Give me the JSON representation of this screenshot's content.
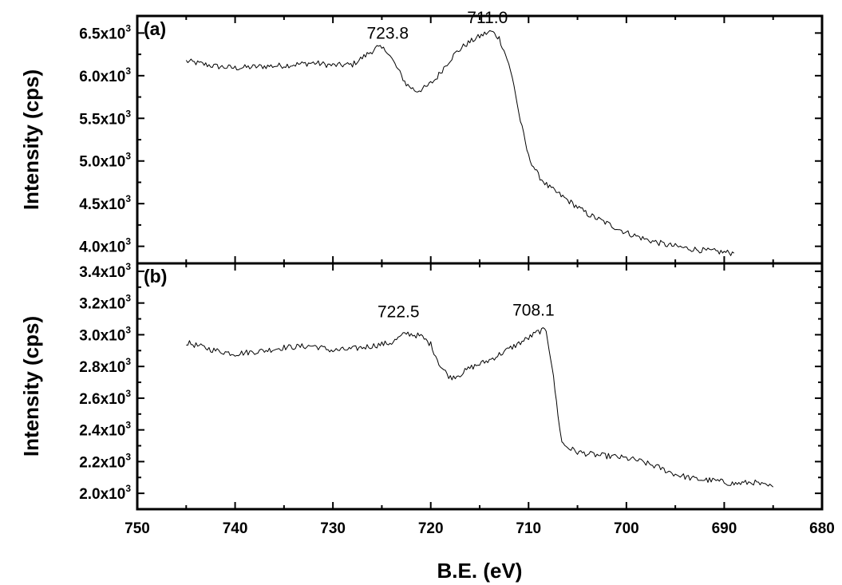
{
  "chart_data": {
    "type": "line",
    "xlabel": "B.E. (eV)",
    "xlim": [
      750,
      680
    ],
    "x_ticks": [
      750,
      740,
      730,
      720,
      710,
      700,
      690,
      680
    ],
    "panels": [
      {
        "tag": "(a)",
        "ylabel": "Intensity (cps)",
        "ylim": [
          3800,
          6700
        ],
        "y_ticks": [
          {
            "value": 4000,
            "mantissa": "4.0x10",
            "exp": "3"
          },
          {
            "value": 4500,
            "mantissa": "4.5x10",
            "exp": "3"
          },
          {
            "value": 5000,
            "mantissa": "5.0x10",
            "exp": "3"
          },
          {
            "value": 5500,
            "mantissa": "5.5x10",
            "exp": "3"
          },
          {
            "value": 6000,
            "mantissa": "6.0x10",
            "exp": "3"
          },
          {
            "value": 6500,
            "mantissa": "6.5x10",
            "exp": "3"
          }
        ],
        "annotations": [
          {
            "text": "723.8",
            "x": 724.4,
            "y": 6360
          },
          {
            "text": "711.0",
            "x": 714.2,
            "y": 6540
          }
        ],
        "series": [
          {
            "x": [
              745,
              742,
              740,
              737,
              735,
              732,
              730,
              728,
              726.5,
              725.5,
              724.5,
              723.5,
              722.5,
              721.5,
              720.5,
              719.5,
              718.5,
              717.5,
              716.5,
              715.5,
              714.5,
              713.8,
              713,
              712.2,
              711.5,
              711,
              710.5,
              710,
              709,
              708,
              707,
              706,
              704,
              702,
              700,
              698,
              696,
              694,
              692,
              690,
              689
            ],
            "y": [
              6170,
              6110,
              6090,
              6110,
              6120,
              6150,
              6120,
              6130,
              6250,
              6330,
              6300,
              6100,
              5900,
              5820,
              5860,
              5960,
              6120,
              6260,
              6360,
              6430,
              6490,
              6520,
              6440,
              6200,
              5900,
              5560,
              5300,
              5050,
              4830,
              4700,
              4620,
              4540,
              4380,
              4270,
              4160,
              4080,
              4020,
              3980,
              3950,
              3930,
              3920
            ]
          }
        ]
      },
      {
        "tag": "(b)",
        "ylabel": "Intensity (cps)",
        "ylim": [
          1900,
          3450
        ],
        "y_ticks": [
          {
            "value": 2000,
            "mantissa": "2.0x10",
            "exp": "3"
          },
          {
            "value": 2200,
            "mantissa": "2.2x10",
            "exp": "3"
          },
          {
            "value": 2400,
            "mantissa": "2.4x10",
            "exp": "3"
          },
          {
            "value": 2600,
            "mantissa": "2.6x10",
            "exp": "3"
          },
          {
            "value": 2800,
            "mantissa": "2.8x10",
            "exp": "3"
          },
          {
            "value": 3000,
            "mantissa": "3.0x10",
            "exp": "3"
          },
          {
            "value": 3200,
            "mantissa": "3.2x10",
            "exp": "3"
          },
          {
            "value": 3400,
            "mantissa": "3.4x10",
            "exp": "3"
          }
        ],
        "annotations": [
          {
            "text": "722.5",
            "x": 723.3,
            "y": 3070
          },
          {
            "text": "708.1",
            "x": 709.5,
            "y": 3080
          }
        ],
        "series": [
          {
            "x": [
              745,
              742,
              740,
              737,
              735,
              732,
              730,
              728,
              726,
              724,
              722.5,
              721,
              720,
              719,
              718,
              717,
              716,
              714,
              712,
              710,
              709,
              708.2,
              707.6,
              707,
              706.6,
              706,
              705,
              703,
              701,
              699,
              697,
              695,
              693,
              691,
              689,
              687,
              686,
              685
            ],
            "y": [
              2950,
              2900,
              2880,
              2900,
              2920,
              2930,
              2900,
              2910,
              2930,
              2950,
              3010,
              2990,
              2940,
              2800,
              2730,
              2750,
              2790,
              2840,
              2910,
              2980,
              3020,
              3030,
              2800,
              2500,
              2320,
              2290,
              2260,
              2240,
              2230,
              2210,
              2170,
              2120,
              2090,
              2080,
              2060,
              2070,
              2050,
              2040
            ]
          }
        ]
      }
    ]
  }
}
